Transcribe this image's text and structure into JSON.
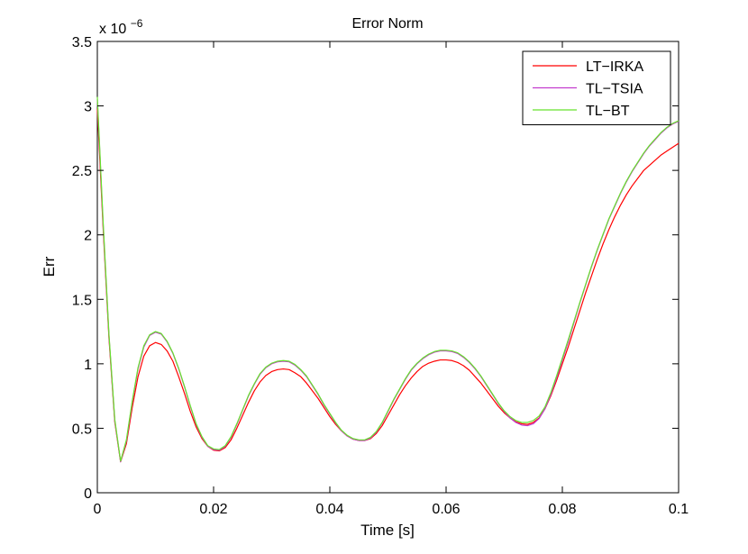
{
  "chart_data": {
    "type": "line",
    "title": "Error Norm",
    "xlabel": "Time [s]",
    "ylabel": "Err",
    "y_exponent_label": "x 10",
    "y_exponent_power": "−6",
    "xlim": [
      0,
      0.1
    ],
    "ylim": [
      0,
      3.5
    ],
    "grid": false,
    "legend_position": "top-right",
    "x_ticks": [
      0,
      0.02,
      0.04,
      0.06,
      0.08,
      0.1
    ],
    "x_tick_labels": [
      "0",
      "0.02",
      "0.04",
      "0.06",
      "0.08",
      "0.1"
    ],
    "y_ticks": [
      0,
      0.5,
      1,
      1.5,
      2,
      2.5,
      3,
      3.5
    ],
    "y_tick_labels": [
      "0",
      "0.5",
      "1",
      "1.5",
      "2",
      "2.5",
      "3",
      "3.5"
    ],
    "x": [
      0,
      0.001,
      0.002,
      0.003,
      0.004,
      0.005,
      0.006,
      0.007,
      0.008,
      0.009,
      0.01,
      0.011,
      0.012,
      0.013,
      0.014,
      0.015,
      0.016,
      0.017,
      0.018,
      0.019,
      0.02,
      0.021,
      0.022,
      0.023,
      0.024,
      0.025,
      0.026,
      0.027,
      0.028,
      0.029,
      0.03,
      0.031,
      0.032,
      0.033,
      0.034,
      0.035,
      0.036,
      0.037,
      0.038,
      0.039,
      0.04,
      0.041,
      0.042,
      0.043,
      0.044,
      0.045,
      0.046,
      0.047,
      0.048,
      0.049,
      0.05,
      0.051,
      0.052,
      0.053,
      0.054,
      0.055,
      0.056,
      0.057,
      0.058,
      0.059,
      0.06,
      0.061,
      0.062,
      0.063,
      0.064,
      0.065,
      0.066,
      0.067,
      0.068,
      0.069,
      0.07,
      0.071,
      0.072,
      0.073,
      0.074,
      0.075,
      0.076,
      0.077,
      0.078,
      0.079,
      0.08,
      0.081,
      0.082,
      0.083,
      0.084,
      0.085,
      0.086,
      0.087,
      0.088,
      0.089,
      0.09,
      0.091,
      0.092,
      0.093,
      0.094,
      0.095,
      0.096,
      0.097,
      0.098,
      0.099,
      0.1
    ],
    "series": [
      {
        "name": "LT−IRKA",
        "color": "#ff0000",
        "values": [
          2.98,
          2.05,
          1.2,
          0.55,
          0.24,
          0.38,
          0.66,
          0.9,
          1.06,
          1.14,
          1.165,
          1.15,
          1.1,
          1.02,
          0.9,
          0.77,
          0.63,
          0.51,
          0.42,
          0.36,
          0.33,
          0.325,
          0.35,
          0.41,
          0.5,
          0.6,
          0.7,
          0.79,
          0.86,
          0.91,
          0.94,
          0.955,
          0.96,
          0.955,
          0.93,
          0.9,
          0.85,
          0.79,
          0.73,
          0.66,
          0.59,
          0.53,
          0.48,
          0.44,
          0.415,
          0.405,
          0.405,
          0.42,
          0.46,
          0.52,
          0.6,
          0.68,
          0.76,
          0.83,
          0.89,
          0.94,
          0.98,
          1.005,
          1.02,
          1.03,
          1.03,
          1.025,
          1.01,
          0.985,
          0.95,
          0.9,
          0.85,
          0.79,
          0.73,
          0.67,
          0.62,
          0.58,
          0.55,
          0.535,
          0.53,
          0.545,
          0.58,
          0.65,
          0.75,
          0.87,
          1.0,
          1.13,
          1.27,
          1.41,
          1.55,
          1.68,
          1.81,
          1.93,
          2.04,
          2.14,
          2.23,
          2.31,
          2.38,
          2.44,
          2.5,
          2.54,
          2.58,
          2.62,
          2.65,
          2.68,
          2.71
        ]
      },
      {
        "name": "TL−TSIA",
        "color": "#c33ccd",
        "values": [
          3.05,
          2.08,
          1.22,
          0.56,
          0.24,
          0.4,
          0.7,
          0.96,
          1.13,
          1.22,
          1.245,
          1.23,
          1.17,
          1.08,
          0.96,
          0.82,
          0.67,
          0.53,
          0.43,
          0.36,
          0.335,
          0.33,
          0.36,
          0.43,
          0.53,
          0.64,
          0.75,
          0.84,
          0.92,
          0.97,
          1.0,
          1.015,
          1.02,
          1.015,
          0.99,
          0.95,
          0.9,
          0.83,
          0.76,
          0.68,
          0.61,
          0.54,
          0.48,
          0.44,
          0.415,
          0.405,
          0.405,
          0.425,
          0.47,
          0.54,
          0.63,
          0.72,
          0.8,
          0.88,
          0.95,
          1.0,
          1.04,
          1.07,
          1.09,
          1.1,
          1.1,
          1.095,
          1.08,
          1.05,
          1.01,
          0.96,
          0.9,
          0.83,
          0.76,
          0.69,
          0.63,
          0.58,
          0.545,
          0.525,
          0.52,
          0.535,
          0.575,
          0.65,
          0.76,
          0.89,
          1.03,
          1.17,
          1.32,
          1.47,
          1.61,
          1.75,
          1.88,
          2.0,
          2.12,
          2.22,
          2.32,
          2.41,
          2.49,
          2.56,
          2.63,
          2.69,
          2.74,
          2.79,
          2.83,
          2.86,
          2.88
        ]
      },
      {
        "name": "TL−BT",
        "color": "#66e22c",
        "values": [
          3.07,
          2.1,
          1.23,
          0.57,
          0.245,
          0.41,
          0.71,
          0.97,
          1.14,
          1.225,
          1.25,
          1.235,
          1.175,
          1.085,
          0.965,
          0.825,
          0.675,
          0.535,
          0.435,
          0.365,
          0.34,
          0.335,
          0.365,
          0.435,
          0.535,
          0.645,
          0.755,
          0.845,
          0.925,
          0.975,
          1.005,
          1.02,
          1.025,
          1.02,
          0.995,
          0.955,
          0.905,
          0.835,
          0.765,
          0.685,
          0.615,
          0.545,
          0.485,
          0.445,
          0.42,
          0.41,
          0.41,
          0.43,
          0.475,
          0.545,
          0.635,
          0.725,
          0.805,
          0.885,
          0.955,
          1.005,
          1.045,
          1.075,
          1.095,
          1.105,
          1.105,
          1.1,
          1.085,
          1.055,
          1.015,
          0.965,
          0.905,
          0.835,
          0.765,
          0.695,
          0.635,
          0.59,
          0.56,
          0.545,
          0.545,
          0.56,
          0.595,
          0.665,
          0.775,
          0.905,
          1.045,
          1.185,
          1.33,
          1.475,
          1.615,
          1.755,
          1.885,
          2.005,
          2.125,
          2.225,
          2.325,
          2.415,
          2.495,
          2.565,
          2.635,
          2.695,
          2.745,
          2.795,
          2.835,
          2.865,
          2.885
        ]
      }
    ]
  }
}
